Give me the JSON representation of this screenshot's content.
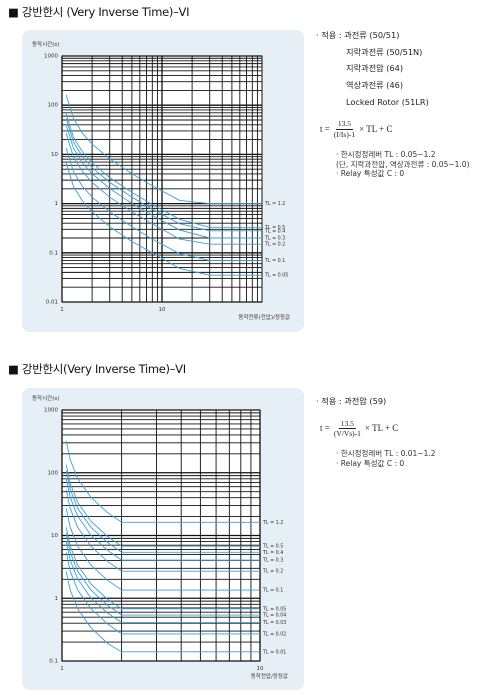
{
  "chart_data": [
    {
      "type": "line",
      "title": "강반한시 (Very Inverse Time)–VI",
      "y_label": "동작시간(s)",
      "x_label": "동작전류(전압)/정정값",
      "xscale": "log",
      "yscale": "log",
      "xlim": [
        1,
        100
      ],
      "ylim": [
        0.01,
        1000
      ],
      "xticks": [
        1,
        10
      ],
      "yticks": [
        1000,
        100,
        10,
        1,
        0.1,
        0.01
      ],
      "x": [
        1.1,
        1.3,
        1.6,
        2,
        3,
        5,
        8,
        15,
        30,
        100
      ],
      "series": [
        {
          "name": "TL = 1.2",
          "color": "#3a9fd6",
          "values": [
            162,
            54,
            27,
            16.2,
            8.1,
            4.05,
            2.31,
            1.16,
            1.0,
            1.0
          ]
        },
        {
          "name": "TL = 0.5",
          "color": "#3a9fd6",
          "values": [
            67.5,
            22.5,
            11.3,
            6.75,
            3.38,
            1.69,
            0.96,
            0.48,
            0.33,
            0.33
          ]
        },
        {
          "name": "TL = 0.4",
          "color": "#3a9fd6",
          "values": [
            54,
            18,
            9,
            5.4,
            2.7,
            1.35,
            0.77,
            0.39,
            0.28,
            0.28
          ]
        },
        {
          "name": "TL = 0.3",
          "color": "#3a9fd6",
          "values": [
            40.5,
            13.5,
            6.75,
            4.05,
            2.03,
            1.01,
            0.58,
            0.29,
            0.2,
            0.2
          ]
        },
        {
          "name": "TL = 0.2",
          "color": "#3a9fd6",
          "values": [
            27,
            9,
            4.5,
            2.7,
            1.35,
            0.68,
            0.39,
            0.19,
            0.15,
            0.15
          ]
        },
        {
          "name": "TL = 0.1",
          "color": "#3a9fd6",
          "values": [
            13.5,
            4.5,
            2.25,
            1.35,
            0.68,
            0.34,
            0.19,
            0.096,
            0.07,
            0.07
          ]
        },
        {
          "name": "TL = 0.05",
          "color": "#3a9fd6",
          "values": [
            6.75,
            2.25,
            1.13,
            0.68,
            0.34,
            0.17,
            0.1,
            0.048,
            0.035,
            0.035
          ]
        }
      ]
    },
    {
      "type": "line",
      "title": "강반한시(Very Inverse Time)–VI",
      "y_label": "동작시간(s)",
      "x_label": "동작전압/정정값",
      "xscale": "log",
      "yscale": "log",
      "xlim": [
        1,
        10
      ],
      "ylim": [
        0.1,
        1000
      ],
      "xticks": [
        1,
        10
      ],
      "yticks": [
        1000,
        100,
        10,
        1,
        0.1
      ],
      "x": [
        1.05,
        1.1,
        1.2,
        1.4,
        1.7,
        2,
        10
      ],
      "series": [
        {
          "name": "TL = 1.2",
          "color": "#3a9fd6",
          "values": [
            324,
            162,
            81,
            40.5,
            23.1,
            16.2,
            16.2
          ]
        },
        {
          "name": "TL = 0.5",
          "color": "#3a9fd6",
          "values": [
            135,
            67.5,
            33.8,
            16.9,
            9.64,
            6.75,
            6.75
          ]
        },
        {
          "name": "TL = 0.4",
          "color": "#3a9fd6",
          "values": [
            108,
            54,
            27,
            13.5,
            7.71,
            5.4,
            5.4
          ]
        },
        {
          "name": "TL = 0.3",
          "color": "#3a9fd6",
          "values": [
            81,
            40.5,
            20.3,
            10.1,
            5.79,
            4.05,
            4.05
          ]
        },
        {
          "name": "TL = 0.2",
          "color": "#3a9fd6",
          "values": [
            54,
            27,
            13.5,
            6.75,
            3.86,
            2.7,
            2.7
          ]
        },
        {
          "name": "TL = 0.1",
          "color": "#3a9fd6",
          "values": [
            27,
            13.5,
            6.75,
            3.38,
            1.93,
            1.35,
            1.35
          ]
        },
        {
          "name": "TL = 0.05",
          "color": "#3a9fd6",
          "values": [
            13.5,
            6.75,
            3.38,
            1.69,
            0.96,
            0.68,
            0.68
          ]
        },
        {
          "name": "TL = 0.04",
          "color": "#3a9fd6",
          "values": [
            10.8,
            5.4,
            2.7,
            1.35,
            0.77,
            0.54,
            0.54
          ]
        },
        {
          "name": "TL = 0.03",
          "color": "#3a9fd6",
          "values": [
            8.1,
            4.05,
            2.03,
            1.01,
            0.58,
            0.41,
            0.41
          ]
        },
        {
          "name": "TL = 0.02",
          "color": "#3a9fd6",
          "values": [
            5.4,
            2.7,
            1.35,
            0.68,
            0.39,
            0.27,
            0.27
          ]
        },
        {
          "name": "TL = 0.01",
          "color": "#3a9fd6",
          "values": [
            2.7,
            1.35,
            0.68,
            0.34,
            0.19,
            0.14,
            0.14
          ]
        }
      ]
    }
  ],
  "notes": [
    {
      "apply": "· 적용 : 과전류 (50/51)",
      "apply_more": [
        "지락과전류 (50/51N)",
        "지락과전압 (64)",
        "역상과전류 (46)",
        "Locked Rotor (51LR)"
      ],
      "formula": {
        "lhs": "t =",
        "numerator": "13.5",
        "denominator": "(I/Is)-1",
        "rhs": "× TL + C"
      },
      "items": [
        "· 한시정정레버 TL : 0.05~1.2",
        "(단, 지락과전압, 역상과전류 : 0.05~1.0)",
        "· Relay 특성값 C : 0"
      ]
    },
    {
      "apply": "· 적용 : 과전압 (59)",
      "apply_more": [],
      "formula": {
        "lhs": "t =",
        "numerator": "13.5",
        "denominator": "(V/Vs)-1",
        "rhs": "× TL + C"
      },
      "items": [
        "· 한시정정레버 TL : 0.01~1.2",
        "· Relay 특성값 C : 0"
      ]
    }
  ]
}
